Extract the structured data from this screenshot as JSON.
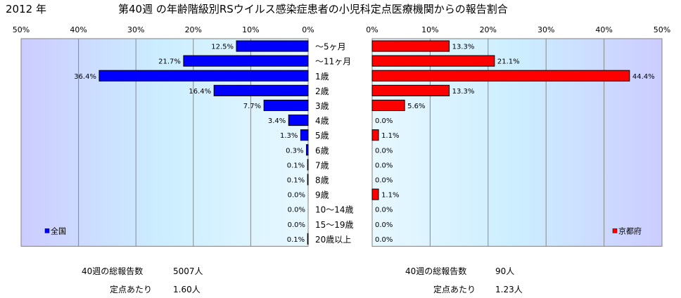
{
  "year_label": "2012 年",
  "title": "第40週 の年齢階級別RSウイルス感染症患者の小児科定点医療機関からの報告割合",
  "chart_data": [
    {
      "type": "bar",
      "orientation": "horizontal",
      "direction": "right-to-left",
      "xlim": [
        0,
        50
      ],
      "ticks": [
        "50%",
        "40%",
        "30%",
        "20%",
        "10%",
        "0%"
      ],
      "categories": [
        "～5ヶ月",
        "～11ヶ月",
        "1歳",
        "2歳",
        "3歳",
        "4歳",
        "5歳",
        "6歳",
        "7歳",
        "8歳",
        "9歳",
        "10～14歳",
        "15～19歳",
        "20歳以上"
      ],
      "series": [
        {
          "name": "全国",
          "color": "#0000ff",
          "values": [
            12.5,
            21.7,
            36.4,
            16.4,
            7.7,
            3.4,
            1.3,
            0.3,
            0.1,
            0.1,
            0.0,
            0.0,
            0.0,
            0.1
          ],
          "labels": [
            "12.5%",
            "21.7%",
            "36.4%",
            "16.4%",
            "7.7%",
            "3.4%",
            "1.3%",
            "0.3%",
            "0.1%",
            "0.1%",
            "0.0%",
            "0.0%",
            "0.0%",
            "0.1%"
          ]
        }
      ],
      "legend": "bottom-left",
      "grid": true
    },
    {
      "type": "bar",
      "orientation": "horizontal",
      "direction": "left-to-right",
      "xlim": [
        0,
        50
      ],
      "ticks": [
        "0%",
        "10%",
        "20%",
        "30%",
        "40%",
        "50%"
      ],
      "categories": [
        "～5ヶ月",
        "～11ヶ月",
        "1歳",
        "2歳",
        "3歳",
        "4歳",
        "5歳",
        "6歳",
        "7歳",
        "8歳",
        "9歳",
        "10～14歳",
        "15～19歳",
        "20歳以上"
      ],
      "series": [
        {
          "name": "京都府",
          "color": "#ff0000",
          "values": [
            13.3,
            21.1,
            44.4,
            13.3,
            5.6,
            0.0,
            1.1,
            0.0,
            0.0,
            0.0,
            1.1,
            0.0,
            0.0,
            0.0
          ],
          "labels": [
            "13.3%",
            "21.1%",
            "44.4%",
            "13.3%",
            "5.6%",
            "0.0%",
            "1.1%",
            "0.0%",
            "0.0%",
            "0.0%",
            "1.1%",
            "0.0%",
            "0.0%",
            "0.0%"
          ]
        }
      ],
      "legend": "bottom-right",
      "grid": true
    }
  ],
  "stats": {
    "national": {
      "total_label": "40週の総報告数",
      "total_value": "5007人",
      "per_label": "定点あたり",
      "per_value": "1.60人"
    },
    "kyoto": {
      "total_label": "40週の総報告数",
      "total_value": "90人",
      "per_label": "定点あたり",
      "per_value": "1.23人"
    }
  }
}
